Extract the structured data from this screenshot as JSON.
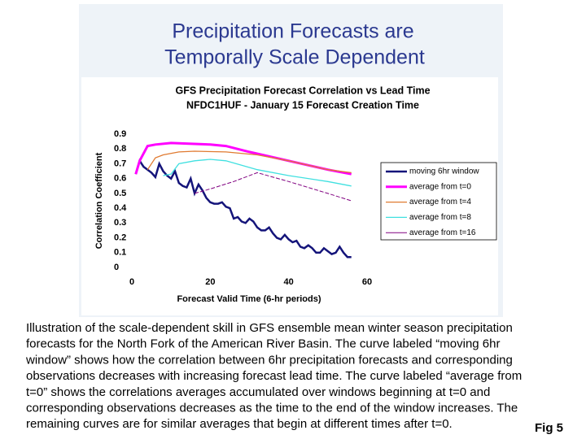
{
  "slide_title": [
    "Precipitation Forecasts are",
    "Temporally Scale Dependent"
  ],
  "chart_data": {
    "type": "line",
    "title": [
      "GFS Precipitation Forecast Correlation vs Lead Time",
      "NFDC1HUF - January 15 Forecast Creation Time"
    ],
    "x_label": "Forecast Valid Time (6-hr periods)",
    "y_label": "Correlation Coefficient",
    "xlim": [
      0,
      60
    ],
    "xticks": [
      0,
      20,
      40,
      60
    ],
    "ylim": [
      0,
      0.9
    ],
    "yticks": [
      0,
      0.1,
      0.2,
      0.3,
      0.4,
      0.5,
      0.6,
      0.7,
      0.8,
      0.9
    ],
    "legend": "right",
    "series": [
      {
        "name": "moving 6hr window",
        "color": "#14147a",
        "x": [
          1,
          2,
          3,
          4,
          5,
          6,
          7,
          8,
          9,
          10,
          11,
          12,
          13,
          14,
          15,
          16,
          17,
          18,
          19,
          20,
          21,
          22,
          23,
          24,
          25,
          26,
          27,
          28,
          29,
          30,
          31,
          32,
          33,
          34,
          35,
          36,
          37,
          38,
          39,
          40,
          41,
          42,
          43,
          44,
          45,
          46,
          47,
          48,
          49,
          50,
          51,
          52,
          53,
          54,
          55,
          56
        ],
        "values": [
          0.63,
          0.72,
          0.68,
          0.66,
          0.64,
          0.61,
          0.7,
          0.65,
          0.62,
          0.6,
          0.65,
          0.57,
          0.55,
          0.54,
          0.6,
          0.5,
          0.56,
          0.52,
          0.47,
          0.44,
          0.43,
          0.43,
          0.44,
          0.41,
          0.4,
          0.33,
          0.34,
          0.31,
          0.3,
          0.33,
          0.31,
          0.27,
          0.25,
          0.25,
          0.27,
          0.23,
          0.2,
          0.19,
          0.22,
          0.19,
          0.17,
          0.18,
          0.14,
          0.13,
          0.15,
          0.13,
          0.1,
          0.1,
          0.13,
          0.11,
          0.09,
          0.1,
          0.14,
          0.1,
          0.07,
          0.07
        ]
      },
      {
        "name": "average from t=0",
        "color": "#ff00ff",
        "x": [
          1,
          2,
          4,
          6,
          10,
          20,
          24,
          30,
          40,
          50,
          56
        ],
        "values": [
          0.63,
          0.72,
          0.82,
          0.83,
          0.84,
          0.83,
          0.82,
          0.78,
          0.72,
          0.66,
          0.63
        ]
      },
      {
        "name": "average from t=4",
        "color": "#e07a30",
        "x": [
          4,
          6,
          8,
          12,
          16,
          24,
          32,
          40,
          50,
          56
        ],
        "values": [
          0.66,
          0.74,
          0.76,
          0.78,
          0.785,
          0.78,
          0.76,
          0.72,
          0.66,
          0.64
        ]
      },
      {
        "name": "average from t=8",
        "color": "#40e0e0",
        "x": [
          8,
          10,
          12,
          16,
          20,
          24,
          32,
          40,
          50,
          56
        ],
        "values": [
          0.62,
          0.63,
          0.7,
          0.72,
          0.73,
          0.72,
          0.66,
          0.62,
          0.58,
          0.55
        ]
      },
      {
        "name": "average from t=16",
        "color": "#800080",
        "x": [
          16,
          20,
          26,
          32,
          40,
          50,
          56
        ],
        "values": [
          0.5,
          0.53,
          0.58,
          0.64,
          0.58,
          0.5,
          0.45
        ]
      }
    ]
  },
  "caption": [
    "Illustration of the scale-dependent skill in GFS ensemble mean winter season precipitation",
    "forecasts for the North Fork of the American River Basin. The curve labeled “moving 6hr",
    "window” shows how the correlation between 6hr precipitation forecasts and corresponding",
    "observations decreases with increasing forecast lead time. The curve labeled “average from",
    "t=0” shows the correlations averages accumulated over windows beginning at t=0 and",
    "corresponding observations decreases as the time to the end of the window increases. The",
    "remaining curves are for similar averages that begin at different times after t=0."
  ],
  "figure_label": "Fig 5"
}
